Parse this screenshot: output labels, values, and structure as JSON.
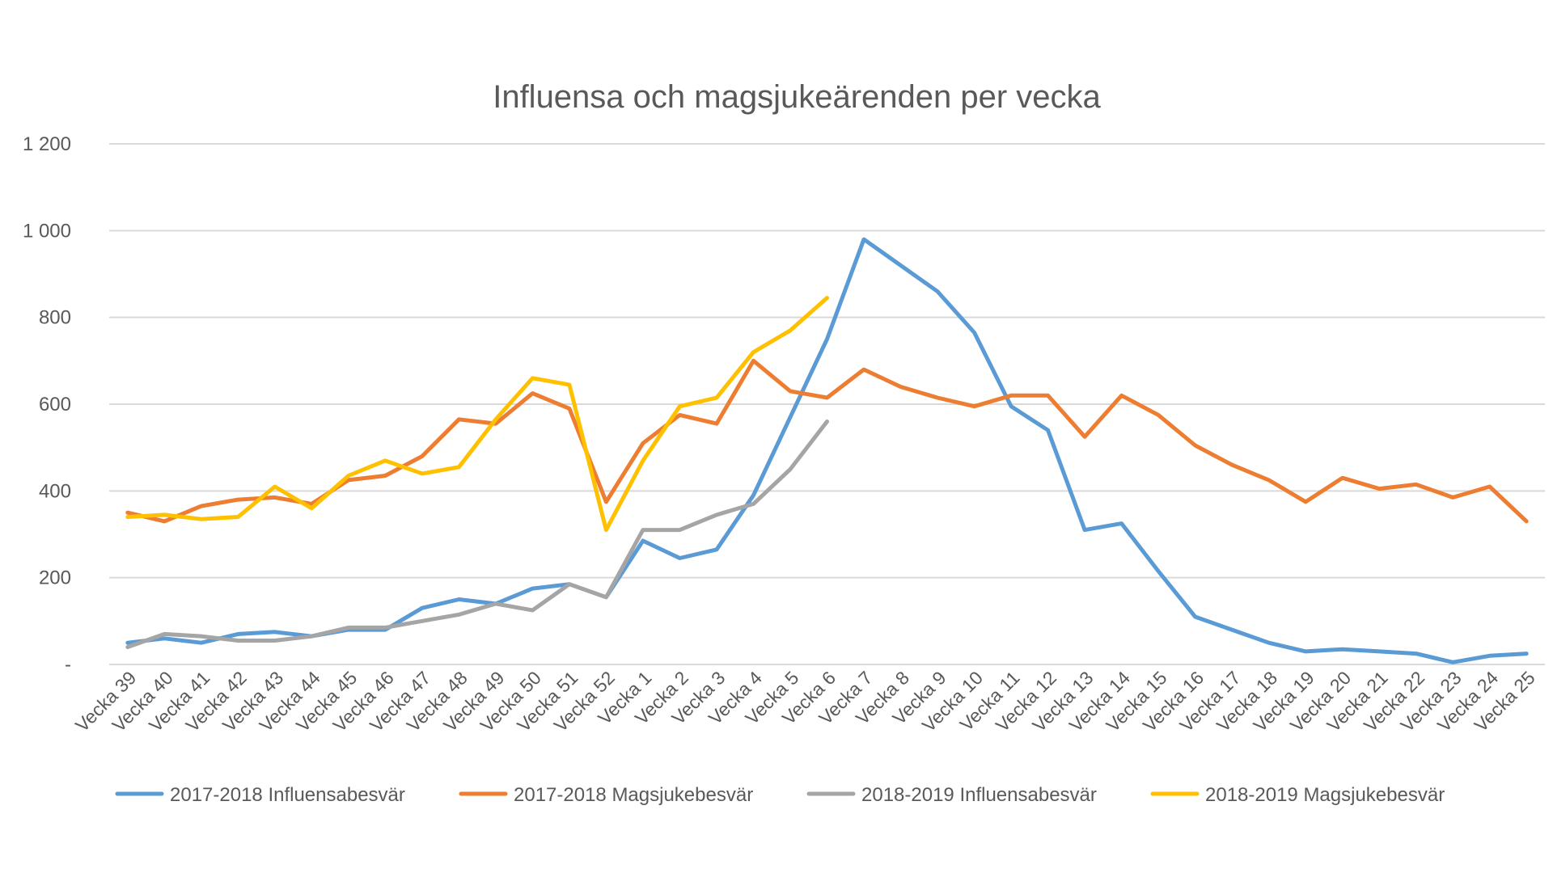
{
  "chart_data": {
    "type": "line",
    "title": "Influensa och magsjukeärenden per vecka",
    "xlabel": "",
    "ylabel": "",
    "ylim": [
      0,
      1200
    ],
    "yticks": [
      {
        "value": 0,
        "label": "-"
      },
      {
        "value": 200,
        "label": "200"
      },
      {
        "value": 400,
        "label": "400"
      },
      {
        "value": 600,
        "label": "600"
      },
      {
        "value": 800,
        "label": "800"
      },
      {
        "value": 1000,
        "label": "1 000"
      },
      {
        "value": 1200,
        "label": "1 200"
      }
    ],
    "grid": true,
    "legend_position": "bottom",
    "categories": [
      "Vecka 39",
      "Vecka 40",
      "Vecka 41",
      "Vecka 42",
      "Vecka 43",
      "Vecka 44",
      "Vecka 45",
      "Vecka 46",
      "Vecka 47",
      "Vecka 48",
      "Vecka 49",
      "Vecka 50",
      "Vecka 51",
      "Vecka 52",
      "Vecka 1",
      "Vecka 2",
      "Vecka 3",
      "Vecka 4",
      "Vecka 5",
      "Vecka 6",
      "Vecka 7",
      "Vecka 8",
      "Vecka 9",
      "Vecka 10",
      "Vecka 11",
      "Vecka 12",
      "Vecka 13",
      "Vecka 14",
      "Vecka 15",
      "Vecka 16",
      "Vecka 17",
      "Vecka 18",
      "Vecka 19",
      "Vecka 20",
      "Vecka 21",
      "Vecka 22",
      "Vecka 23",
      "Vecka 24",
      "Vecka 25"
    ],
    "series": [
      {
        "name": "2017-2018 Influensabesvär",
        "color": "#5b9bd5",
        "values": [
          50,
          60,
          50,
          70,
          75,
          65,
          80,
          80,
          130,
          150,
          140,
          175,
          185,
          155,
          285,
          245,
          265,
          390,
          570,
          750,
          980,
          920,
          860,
          765,
          595,
          540,
          310,
          325,
          215,
          110,
          80,
          50,
          30,
          35,
          30,
          25,
          5,
          20,
          25
        ]
      },
      {
        "name": "2017-2018 Magsjukebesvär",
        "color": "#ed7d31",
        "values": [
          350,
          330,
          365,
          380,
          385,
          370,
          425,
          435,
          480,
          565,
          555,
          625,
          590,
          375,
          510,
          575,
          555,
          700,
          630,
          615,
          680,
          640,
          615,
          595,
          620,
          620,
          525,
          620,
          575,
          505,
          460,
          425,
          375,
          430,
          405,
          415,
          385,
          410,
          330
        ]
      },
      {
        "name": "2018-2019 Influensabesvär",
        "color": "#a5a5a5",
        "values": [
          40,
          70,
          65,
          55,
          55,
          65,
          85,
          85,
          100,
          115,
          140,
          125,
          185,
          155,
          310,
          310,
          345,
          370,
          450,
          560,
          null,
          null,
          null,
          null,
          null,
          null,
          null,
          null,
          null,
          null,
          null,
          null,
          null,
          null,
          null,
          null,
          null,
          null,
          null
        ]
      },
      {
        "name": "2018-2019 Magsjukebesvär",
        "color": "#ffc000",
        "values": [
          340,
          345,
          335,
          340,
          410,
          360,
          435,
          470,
          440,
          455,
          565,
          660,
          645,
          310,
          470,
          595,
          615,
          720,
          770,
          845,
          null,
          null,
          null,
          null,
          null,
          null,
          null,
          null,
          null,
          null,
          null,
          null,
          null,
          null,
          null,
          null,
          null,
          null,
          null
        ]
      }
    ]
  }
}
